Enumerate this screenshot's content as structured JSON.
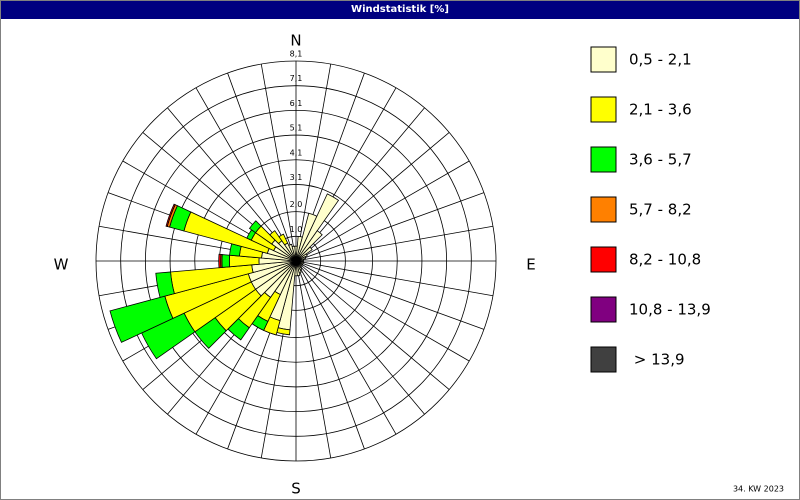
{
  "chart_data": {
    "type": "windrose",
    "title": "Windstatistik [%]",
    "footer": "34. KW 2023",
    "directions": {
      "n": "N",
      "e": "E",
      "s": "S",
      "w": "W"
    },
    "categories": [
      null,
      null,
      null,
      null,
      null,
      null,
      null,
      null,
      null,
      null,
      null,
      null,
      null,
      null,
      null,
      null,
      null,
      null,
      null,
      null,
      null,
      null,
      null,
      null,
      null,
      null,
      null,
      null,
      null,
      null,
      null,
      null,
      null,
      null,
      null,
      null
    ],
    "ylim": [
      0,
      8.1
    ],
    "yticks": [
      {
        "value": 1.0,
        "label": "1,0"
      },
      {
        "value": 2.0,
        "label": "2,0"
      },
      {
        "value": 3.1,
        "label": "3,1"
      },
      {
        "value": 4.1,
        "label": "4,1"
      },
      {
        "value": 5.1,
        "label": "5,1"
      },
      {
        "value": 6.1,
        "label": "6,1"
      },
      {
        "value": 7.1,
        "label": "7,1"
      },
      {
        "value": 8.1,
        "label": "8,1"
      }
    ],
    "grid": true,
    "series": [
      {
        "name": "0,5 - 2,1",
        "color": "#ffffcc",
        "values": [
          0.6,
          1.0,
          2.0,
          3.0,
          1.5,
          0.8,
          0.5,
          0.4,
          0.3,
          0.3,
          0.3,
          0.3,
          0.3,
          0.3,
          0.3,
          0.4,
          0.5,
          0.6,
          0.6,
          2.8,
          2.5,
          1.5,
          1.8,
          2.0,
          2.0,
          2.0,
          1.8,
          1.5,
          1.4,
          1.2,
          1.0,
          1.2,
          1.0,
          0.8,
          0.7,
          0.6
        ]
      },
      {
        "name": "2,1 - 3,6",
        "color": "#ffff00",
        "values": [
          0,
          0,
          0,
          0,
          0,
          0,
          0,
          0,
          0,
          0,
          0,
          0,
          0,
          0,
          0,
          0,
          0,
          0,
          0,
          0.2,
          0.6,
          1.2,
          1.5,
          2.0,
          3.0,
          3.5,
          3.3,
          1.2,
          0.9,
          3.5,
          1.0,
          0.8,
          0.5,
          0.4,
          0,
          0
        ]
      },
      {
        "name": "3,6 - 5,7",
        "color": "#00ff00",
        "values": [
          0,
          0,
          0,
          0,
          0,
          0,
          0,
          0,
          0,
          0,
          0,
          0,
          0,
          0,
          0,
          0,
          0,
          0,
          0,
          0,
          0,
          0.4,
          0.6,
          1.0,
          1.9,
          2.3,
          0.6,
          0.3,
          0.4,
          0.6,
          0.2,
          0.3,
          0,
          0,
          0,
          0
        ]
      },
      {
        "name": "5,7 - 8,2",
        "color": "#ff8000",
        "values": [
          0,
          0,
          0,
          0,
          0,
          0,
          0,
          0,
          0,
          0,
          0,
          0,
          0,
          0,
          0,
          0,
          0,
          0,
          0,
          0,
          0,
          0,
          0,
          0,
          0,
          0,
          0,
          0.05,
          0,
          0.1,
          0,
          0,
          0,
          0,
          0,
          0
        ]
      },
      {
        "name": "8,2 - 10,8",
        "color": "#ff0000",
        "values": [
          0,
          0,
          0,
          0,
          0,
          0,
          0,
          0,
          0,
          0,
          0,
          0,
          0,
          0,
          0,
          0,
          0,
          0,
          0,
          0,
          0,
          0,
          0,
          0,
          0,
          0,
          0,
          0.08,
          0,
          0.05,
          0,
          0,
          0,
          0,
          0,
          0
        ]
      },
      {
        "name": "10,8 - 13,9",
        "color": "#800080",
        "values": [
          0,
          0,
          0,
          0,
          0,
          0,
          0,
          0,
          0,
          0,
          0,
          0,
          0,
          0,
          0,
          0,
          0,
          0,
          0,
          0,
          0,
          0,
          0,
          0,
          0,
          0,
          0,
          0,
          0,
          0,
          0,
          0,
          0,
          0,
          0,
          0
        ]
      },
      {
        "name": " > 13,9",
        "color": "#404040",
        "values": [
          0,
          0,
          0,
          0,
          0,
          0,
          0,
          0,
          0,
          0,
          0,
          0,
          0,
          0,
          0,
          0,
          0,
          0,
          0,
          0,
          0,
          0,
          0,
          0,
          0,
          0,
          0,
          0,
          0,
          0,
          0,
          0,
          0,
          0,
          0,
          0
        ]
      }
    ]
  }
}
